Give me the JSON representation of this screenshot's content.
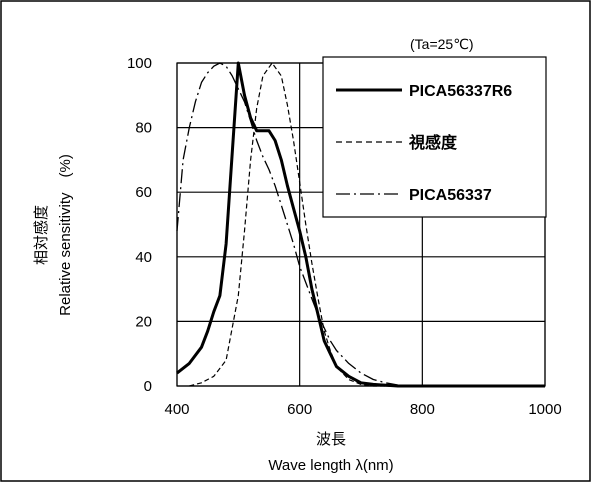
{
  "chart_data": {
    "type": "line",
    "condition_note": "(Ta=25℃)",
    "xlabel_jp": "波長",
    "xlabel_en": "Wave length λ(nm)",
    "ylabel_jp": "相対感度",
    "ylabel_en": "Relative sensitivity　(%)",
    "xlim": [
      400,
      1000
    ],
    "ylim": [
      0,
      100
    ],
    "x_ticks": [
      400,
      600,
      800,
      1000
    ],
    "y_ticks": [
      0,
      20,
      40,
      60,
      80,
      100
    ],
    "grid": true,
    "legend_position": "top-right",
    "series": [
      {
        "name": "PICA56337R6",
        "style": "solid-bold",
        "color": "#000000",
        "points": [
          [
            400,
            4
          ],
          [
            420,
            7
          ],
          [
            440,
            12
          ],
          [
            450,
            17
          ],
          [
            460,
            23
          ],
          [
            470,
            28
          ],
          [
            480,
            44
          ],
          [
            490,
            72
          ],
          [
            500,
            100
          ],
          [
            510,
            90
          ],
          [
            520,
            83
          ],
          [
            530,
            79
          ],
          [
            540,
            79
          ],
          [
            550,
            79
          ],
          [
            560,
            76
          ],
          [
            570,
            70
          ],
          [
            580,
            62
          ],
          [
            590,
            55
          ],
          [
            600,
            48
          ],
          [
            610,
            40
          ],
          [
            620,
            30
          ],
          [
            630,
            22
          ],
          [
            640,
            14
          ],
          [
            650,
            10
          ],
          [
            660,
            6
          ],
          [
            680,
            3
          ],
          [
            700,
            1
          ],
          [
            720,
            0.5
          ],
          [
            760,
            0
          ],
          [
            1000,
            0
          ]
        ]
      },
      {
        "name": "視感度",
        "style": "dashed",
        "color": "#000000",
        "points": [
          [
            420,
            0
          ],
          [
            440,
            1
          ],
          [
            460,
            3
          ],
          [
            480,
            8
          ],
          [
            500,
            28
          ],
          [
            510,
            48
          ],
          [
            520,
            70
          ],
          [
            530,
            86
          ],
          [
            540,
            96
          ],
          [
            555,
            100
          ],
          [
            570,
            96
          ],
          [
            580,
            87
          ],
          [
            590,
            76
          ],
          [
            600,
            63
          ],
          [
            610,
            50
          ],
          [
            620,
            38
          ],
          [
            630,
            27
          ],
          [
            640,
            17
          ],
          [
            650,
            11
          ],
          [
            660,
            6
          ],
          [
            680,
            2
          ],
          [
            700,
            0.5
          ],
          [
            720,
            0
          ],
          [
            1000,
            0
          ]
        ]
      },
      {
        "name": "PICA56337",
        "style": "dash-dot",
        "color": "#000000",
        "points": [
          [
            400,
            48
          ],
          [
            410,
            70
          ],
          [
            420,
            80
          ],
          [
            430,
            88
          ],
          [
            440,
            94
          ],
          [
            450,
            97
          ],
          [
            460,
            99
          ],
          [
            470,
            100
          ],
          [
            480,
            99
          ],
          [
            490,
            96
          ],
          [
            500,
            92
          ],
          [
            510,
            88
          ],
          [
            520,
            82
          ],
          [
            530,
            76
          ],
          [
            540,
            71
          ],
          [
            550,
            67
          ],
          [
            560,
            62
          ],
          [
            570,
            56
          ],
          [
            580,
            50
          ],
          [
            590,
            44
          ],
          [
            600,
            37
          ],
          [
            610,
            32
          ],
          [
            620,
            27
          ],
          [
            630,
            22
          ],
          [
            640,
            18
          ],
          [
            650,
            14
          ],
          [
            660,
            11
          ],
          [
            680,
            7
          ],
          [
            700,
            4
          ],
          [
            720,
            2
          ],
          [
            740,
            1
          ],
          [
            760,
            0.3
          ],
          [
            800,
            0
          ],
          [
            1000,
            0
          ]
        ]
      }
    ]
  }
}
